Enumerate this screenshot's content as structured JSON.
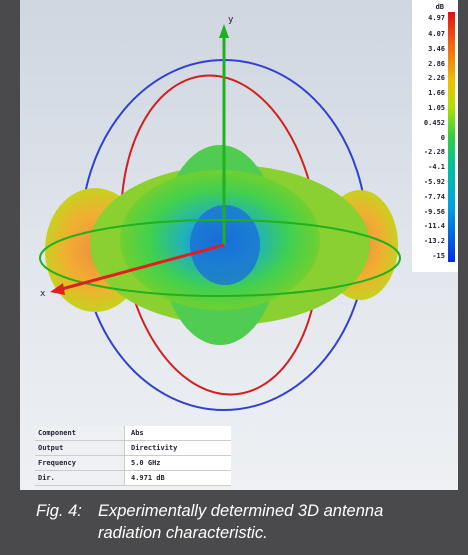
{
  "figure": {
    "axes": {
      "y": "y",
      "x": "x"
    },
    "colorbar": {
      "unit": "dB",
      "labels": [
        "4.97",
        "4.07",
        "3.46",
        "2.86",
        "2.26",
        "1.66",
        "1.05",
        "0.452",
        "0",
        "-2.28",
        "-4.1",
        "-5.92",
        "-7.74",
        "-9.56",
        "-11.4",
        "-13.2",
        "-15"
      ]
    },
    "info": {
      "rows": [
        [
          "Component",
          "Abs"
        ],
        [
          "Output",
          "Directivity"
        ],
        [
          "Frequency",
          "5.0 GHz"
        ],
        [
          "Dir.",
          "4.971 dB"
        ]
      ]
    },
    "caption": {
      "label": "Fig. 4:",
      "text": "Experimentally determined 3D antenna radiation characteristic."
    }
  }
}
